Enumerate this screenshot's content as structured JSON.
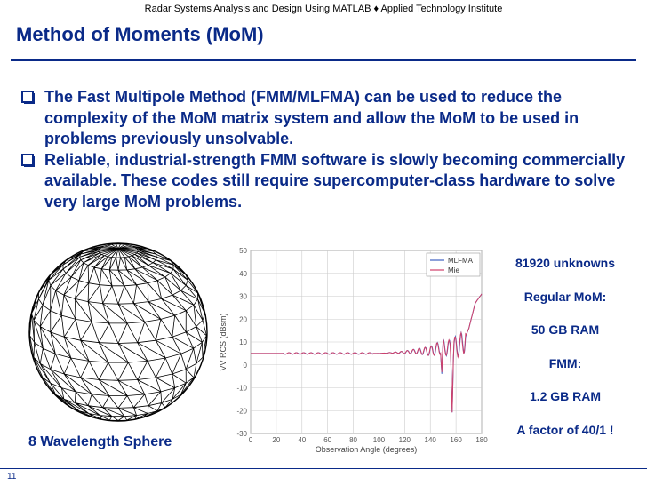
{
  "header": {
    "text": "Radar Systems Analysis and Design Using MATLAB ♦ Applied Technology Institute"
  },
  "slide": {
    "title": "Method of Moments (MoM)",
    "bullets": [
      "The Fast Multipole Method (FMM/MLFMA) can be used to reduce the complexity of the MoM matrix system and allow the MoM to be used in problems previously unsolvable.",
      "Reliable, industrial-strength FMM software is slowly becoming commercially available. These codes still require supercomputer-class hardware to solve very large MoM problems."
    ],
    "sphere_label": "8 Wavelength Sphere",
    "stats": [
      "81920 unknowns",
      "Regular MoM:",
      "50 GB RAM",
      "FMM:",
      "1.2 GB RAM",
      "A factor of 40/1 !"
    ],
    "page_number": "11"
  },
  "colors": {
    "title": "#0a2a88",
    "mlfma": "#4060c0",
    "mie": "#d0406a"
  },
  "chart_data": {
    "type": "line",
    "xlabel": "Observation Angle (degrees)",
    "ylabel": "VV RCS (dBsm)",
    "xlim": [
      0,
      180
    ],
    "ylim": [
      -30,
      50
    ],
    "x_ticks": [
      0,
      20,
      40,
      60,
      80,
      100,
      120,
      140,
      160,
      180
    ],
    "y_ticks": [
      -30,
      -20,
      -10,
      0,
      10,
      20,
      30,
      40,
      50
    ],
    "grid": true,
    "legend_position": "top-right",
    "series": [
      {
        "name": "MLFMA",
        "x": [
          0,
          20,
          40,
          60,
          80,
          100,
          110,
          120,
          130,
          140,
          145,
          150,
          155,
          160,
          165,
          170,
          175,
          180
        ],
        "y": [
          5,
          5,
          5,
          5,
          5,
          5,
          5.3,
          5.5,
          6,
          6,
          7,
          8,
          7,
          8,
          9,
          16,
          27,
          31
        ]
      },
      {
        "name": "Mie",
        "x": [
          0,
          20,
          40,
          60,
          80,
          100,
          110,
          120,
          130,
          140,
          145,
          150,
          155,
          160,
          165,
          170,
          175,
          180
        ],
        "y": [
          5,
          5,
          5,
          5,
          5,
          5,
          5.3,
          5.5,
          6,
          6,
          7,
          8,
          7,
          8,
          9,
          16,
          27,
          31
        ]
      }
    ]
  }
}
